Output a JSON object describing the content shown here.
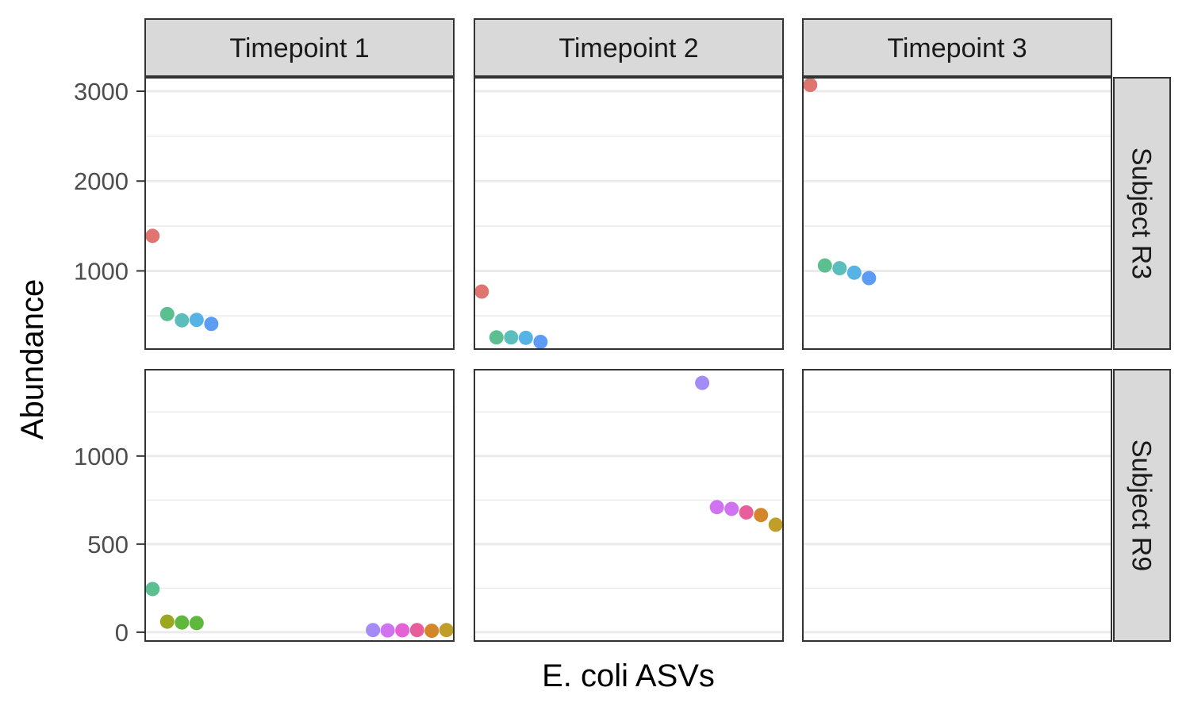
{
  "chart_data": {
    "type": "scatter",
    "xlabel": "E. coli ASVs",
    "ylabel": "Abundance",
    "columns": [
      "Timepoint 1",
      "Timepoint 2",
      "Timepoint 3"
    ],
    "rows": [
      "Subject R3",
      "Subject R9"
    ],
    "grid": true,
    "scales": {
      "Subject R3": {
        "ylim": [
          130,
          3150
        ],
        "ticks": [
          1000,
          2000,
          3000
        ]
      },
      "Subject R9": {
        "ylim": [
          -50,
          1490
        ],
        "ticks": [
          0,
          500,
          1000
        ]
      }
    },
    "x_range": [
      0.5,
      21.5
    ],
    "series_colors": {
      "ASV1": "#e07470",
      "ASV2": "#bd9b1f",
      "ASV3": "#9aa820",
      "ASV4": "#5fb83e",
      "ASV5": "#5cbf8f",
      "ASV6": "#5cbdbd",
      "ASV7": "#57b2e6",
      "ASV8": "#5c9cf5",
      "ASV9": "#a58bf5",
      "ASV10": "#cf73f0",
      "ASV11": "#e660d6",
      "ASV12": "#e85e9b",
      "ASV13": "#d4862a",
      "ASV14": "#bf9e2a"
    },
    "panels": [
      {
        "row": "Subject R3",
        "col": "Timepoint 1",
        "points": [
          {
            "x": 1,
            "y": 1390,
            "series": "ASV1"
          },
          {
            "x": 2,
            "y": 520,
            "series": "ASV5"
          },
          {
            "x": 3,
            "y": 450,
            "series": "ASV6"
          },
          {
            "x": 4,
            "y": 455,
            "series": "ASV7"
          },
          {
            "x": 5,
            "y": 410,
            "series": "ASV8"
          }
        ]
      },
      {
        "row": "Subject R3",
        "col": "Timepoint 2",
        "points": [
          {
            "x": 1,
            "y": 770,
            "series": "ASV1"
          },
          {
            "x": 2,
            "y": 260,
            "series": "ASV5"
          },
          {
            "x": 3,
            "y": 260,
            "series": "ASV6"
          },
          {
            "x": 4,
            "y": 255,
            "series": "ASV7"
          },
          {
            "x": 5,
            "y": 210,
            "series": "ASV8"
          }
        ]
      },
      {
        "row": "Subject R3",
        "col": "Timepoint 3",
        "points": [
          {
            "x": 1,
            "y": 3070,
            "series": "ASV1"
          },
          {
            "x": 2,
            "y": 1060,
            "series": "ASV5"
          },
          {
            "x": 3,
            "y": 1030,
            "series": "ASV6"
          },
          {
            "x": 4,
            "y": 980,
            "series": "ASV7"
          },
          {
            "x": 5,
            "y": 920,
            "series": "ASV8"
          }
        ]
      },
      {
        "row": "Subject R9",
        "col": "Timepoint 1",
        "points": [
          {
            "x": 1,
            "y": 245,
            "series": "ASV5"
          },
          {
            "x": 2,
            "y": 60,
            "series": "ASV3"
          },
          {
            "x": 3,
            "y": 55,
            "series": "ASV4"
          },
          {
            "x": 4,
            "y": 52,
            "series": "ASV4"
          },
          {
            "x": 16,
            "y": 12,
            "series": "ASV9"
          },
          {
            "x": 17,
            "y": 10,
            "series": "ASV10"
          },
          {
            "x": 18,
            "y": 11,
            "series": "ASV11"
          },
          {
            "x": 19,
            "y": 12,
            "series": "ASV12"
          },
          {
            "x": 20,
            "y": 8,
            "series": "ASV13"
          },
          {
            "x": 21,
            "y": 12,
            "series": "ASV14"
          }
        ]
      },
      {
        "row": "Subject R9",
        "col": "Timepoint 2",
        "points": [
          {
            "x": 16,
            "y": 1415,
            "series": "ASV9"
          },
          {
            "x": 17,
            "y": 710,
            "series": "ASV10"
          },
          {
            "x": 18,
            "y": 700,
            "series": "ASV10"
          },
          {
            "x": 19,
            "y": 680,
            "series": "ASV12"
          },
          {
            "x": 20,
            "y": 665,
            "series": "ASV13"
          },
          {
            "x": 21,
            "y": 610,
            "series": "ASV14"
          }
        ]
      },
      {
        "row": "Subject R9",
        "col": "Timepoint 3",
        "points": []
      }
    ]
  }
}
